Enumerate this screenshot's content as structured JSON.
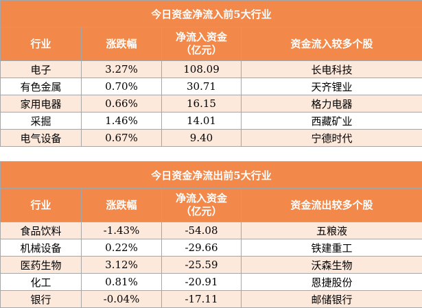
{
  "inflow_table": {
    "title": "今日资金净流入前5大行业",
    "headers": [
      "行业",
      "涨跌幅",
      "净流入资金\n（亿元）",
      "资金流入较多个股"
    ],
    "rows": [
      [
        "电子",
        "3.27%",
        "108.09",
        "长电科技"
      ],
      [
        "有色金属",
        "0.70%",
        "30.71",
        "天齐锂业"
      ],
      [
        "家用电器",
        "0.66%",
        "16.15",
        "格力电器"
      ],
      [
        "采掘",
        "1.46%",
        "14.01",
        "西藏矿业"
      ],
      [
        "电气设备",
        "0.67%",
        "9.40",
        "宁德时代"
      ]
    ]
  },
  "outflow_table": {
    "title": "今日资金净流出前5大行业",
    "headers": [
      "行业",
      "涨跌幅",
      "净流入资金\n（亿元）",
      "资金流出较多个股"
    ],
    "rows": [
      [
        "食品饮料",
        "-1.43%",
        "-54.08",
        "五粮液"
      ],
      [
        "机械设备",
        "0.22%",
        "-29.66",
        "铁建重工"
      ],
      [
        "医药生物",
        "3.12%",
        "-25.59",
        "沃森生物"
      ],
      [
        "化工",
        "0.81%",
        "-20.91",
        "恩捷股份"
      ],
      [
        "银行",
        "-0.04%",
        "-17.11",
        "邮储银行"
      ]
    ]
  },
  "colors": {
    "header_bg": "#f2894a",
    "row_alt_bg": "#fde9dc",
    "border": "#a6a6a6"
  }
}
